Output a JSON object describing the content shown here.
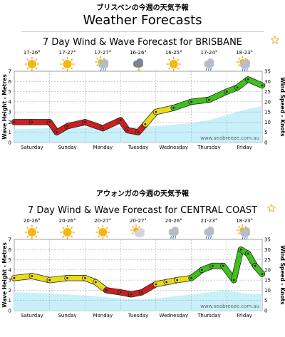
{
  "page": {
    "brisbane_jp": "ブリスベンの今週の天気予報",
    "main_title": "Weather Forecasts",
    "central_jp": "アウォンガの今週の天気予報",
    "star_icon": "star-outline-icon",
    "star_color": "#f0b040"
  },
  "chart_data": [
    {
      "type": "line",
      "title": "7 Day Wind & Wave Forecast for BRISBANE",
      "ylabel": "Wave Height - Metres",
      "y2label": "Wind Speed - Knots",
      "ylim": [
        0,
        7
      ],
      "y2lim": [
        0,
        35
      ],
      "watermark": "www.seabreeze.com.au",
      "categories": [
        "Saturday",
        "Sunday",
        "Monday",
        "Tuesday",
        "Wednesday",
        "Thursday",
        "Friday"
      ],
      "temps": [
        "17-26°",
        "17-27°",
        "17-27°",
        "16-26°",
        "16-25°",
        "17-24°",
        "18-23°"
      ],
      "icons": [
        "sun-icon",
        "sun-icon",
        "sun-cloud-rain-icon",
        "storm-cloud-icon",
        "sun-icon",
        "cloud-rain-icon",
        "sun-cloud-rain-icon"
      ],
      "wave_x": [
        0,
        1,
        2,
        3,
        4,
        5,
        5.5,
        6,
        6.5,
        7
      ],
      "wave_y": [
        1.3,
        1.4,
        1.5,
        1.5,
        1.6,
        1.9,
        2.2,
        2.7,
        3.2,
        3.6
      ],
      "wind_x": [
        0,
        0.5,
        1,
        1.2,
        1.5,
        2,
        2.5,
        3,
        3.2,
        3.5,
        3.7,
        4,
        4.5,
        5,
        5.5,
        6,
        6.3,
        6.6,
        7
      ],
      "wind_y": [
        10,
        10,
        10,
        5,
        8,
        10,
        7,
        11,
        6,
        5,
        9,
        15,
        17,
        20,
        21,
        25,
        27,
        31,
        28
      ],
      "wind_color_thresholds": [
        12,
        18
      ],
      "wind_colors": [
        "#cc1f1f",
        "#e8dc18",
        "#3fc01c"
      ]
    },
    {
      "type": "line",
      "title": "7 Day Wind & Wave Forecast for CENTRAL COAST",
      "ylabel": "Wave Height - Metres",
      "y2label": "Wind Speed - Knots",
      "ylim": [
        0,
        7
      ],
      "y2lim": [
        0,
        35
      ],
      "watermark": "www.seabreeze.com.au",
      "categories": [
        "Saturday",
        "Sunday",
        "Monday",
        "Tuesday",
        "Wednesday",
        "Thursday",
        "Friday"
      ],
      "temps": [
        "20-26°",
        "20-26°",
        "20-27°",
        "20-27°",
        "20-26°",
        "21-23°",
        "18-23°"
      ],
      "icons": [
        "sun-icon",
        "sun-icon",
        "sun-icon",
        "sun-cloud-icon",
        "cloud-rain-icon",
        "cloud-rain-icon",
        "sun-cloud-rain-icon"
      ],
      "wave_x": [
        0,
        1,
        2,
        3,
        3.5,
        4,
        4.5,
        5,
        6,
        6.5,
        7
      ],
      "wave_y": [
        1.8,
        1.7,
        1.5,
        1.2,
        1.1,
        1.2,
        1.4,
        1.6,
        2.0,
        1.7,
        1.6
      ],
      "wind_x": [
        0,
        0.5,
        1,
        1.5,
        2,
        2.3,
        2.6,
        3,
        3.3,
        3.6,
        4,
        4.3,
        4.6,
        5,
        5.3,
        5.6,
        5.9,
        6.2,
        6.4,
        6.6,
        6.8,
        7
      ],
      "wind_y": [
        16,
        17,
        15,
        16,
        16,
        14,
        10,
        9,
        8,
        9,
        13,
        14,
        15,
        16,
        20,
        22,
        22,
        15,
        30,
        28,
        22,
        18
      ],
      "wind_color_thresholds": [
        12,
        18
      ],
      "wind_colors": [
        "#cc1f1f",
        "#e8dc18",
        "#3fc01c"
      ]
    }
  ]
}
